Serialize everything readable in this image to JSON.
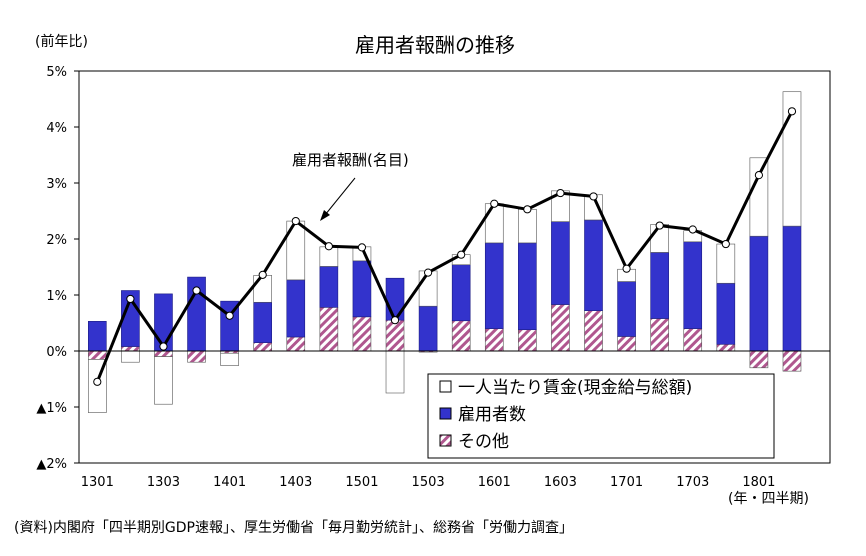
{
  "chart_data": {
    "type": "bar",
    "title": "雇用者報酬の推移",
    "ylabel": "(前年比)",
    "xlabel": "(年・四半期)",
    "source": "(資料)内閣府「四半期別GDP速報」、厚生労働省「毎月勤労統計」、総務省「労働力調査」",
    "ylim": [
      -2,
      5
    ],
    "y_ticks": [
      -2,
      -1,
      0,
      1,
      2,
      3,
      4,
      5
    ],
    "y_tick_labels": [
      "▲2%",
      "▲1%",
      "0%",
      "1%",
      "2%",
      "3%",
      "4%",
      "5%"
    ],
    "grid": false,
    "legend_position": "bottom-right",
    "categories": [
      "1301",
      "1302",
      "1303",
      "1304",
      "1401",
      "1402",
      "1403",
      "1404",
      "1501",
      "1502",
      "1503",
      "1504",
      "1601",
      "1602",
      "1603",
      "1604",
      "1701",
      "1702",
      "1703",
      "1704",
      "1801",
      "1802"
    ],
    "x_tick_labels": [
      "1301",
      "1303",
      "1401",
      "1403",
      "1501",
      "1503",
      "1601",
      "1603",
      "1701",
      "1703",
      "1801"
    ],
    "series": [
      {
        "name": "一人当たり賃金(現金給与総額)",
        "values": [
          -0.95,
          -0.2,
          -0.85,
          0.0,
          -0.22,
          0.48,
          1.05,
          0.35,
          0.25,
          -0.75,
          0.63,
          0.18,
          0.7,
          0.6,
          0.55,
          0.45,
          0.22,
          0.5,
          0.2,
          0.7,
          1.4,
          2.4
        ]
      },
      {
        "name": "雇用者数",
        "values": [
          0.53,
          1.0,
          1.02,
          1.32,
          0.89,
          0.72,
          1.02,
          0.73,
          1.0,
          0.75,
          0.8,
          1.0,
          1.53,
          1.55,
          1.48,
          1.62,
          0.98,
          1.18,
          1.55,
          1.09,
          2.05,
          2.23
        ]
      },
      {
        "name": "その他",
        "values": [
          -0.15,
          0.08,
          -0.1,
          -0.2,
          -0.04,
          0.15,
          0.25,
          0.78,
          0.61,
          0.55,
          -0.02,
          0.54,
          0.4,
          0.38,
          0.83,
          0.72,
          0.26,
          0.58,
          0.4,
          0.12,
          -0.3,
          -0.36
        ]
      },
      {
        "name": "雇用者報酬(名目)",
        "type": "line",
        "values": [
          -0.55,
          0.93,
          0.08,
          1.08,
          0.63,
          1.36,
          2.32,
          1.87,
          1.85,
          0.55,
          1.4,
          1.72,
          2.63,
          2.53,
          2.82,
          2.76,
          1.47,
          2.24,
          2.17,
          1.91,
          3.14,
          4.28
        ]
      }
    ],
    "annotation": "雇用者報酬(名目)"
  },
  "colors": {
    "wage_fill": "#ffffff",
    "employees_fill": "#3333cc",
    "other_hatch": "#b0578f",
    "line": "#000000",
    "marker_fill": "#ffffff"
  }
}
